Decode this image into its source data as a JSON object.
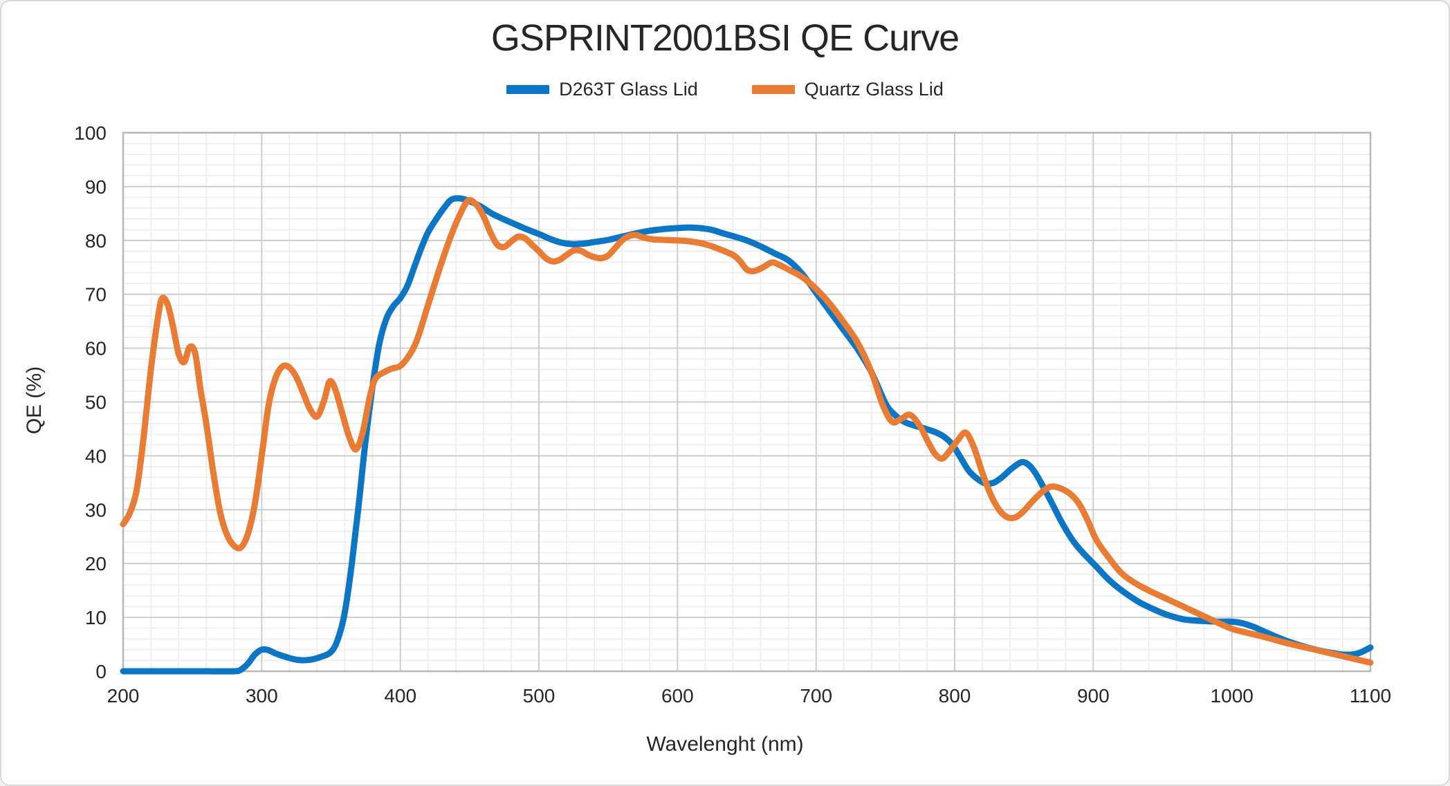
{
  "window": {
    "background": "#ffffff",
    "border_color": "#d9d9d9"
  },
  "title": "GSPRINT2001BSI QE Curve",
  "legend": {
    "items": [
      {
        "label": "D263T Glass Lid",
        "color": "#0d76c4"
      },
      {
        "label": "Quartz Glass Lid",
        "color": "#e87c35"
      }
    ]
  },
  "axes": {
    "x_title": "Wavelenght (nm)",
    "y_title": "QE (%)"
  },
  "chart_data": {
    "type": "line",
    "title": "GSPRINT2001BSI QE Curve",
    "xlabel": "Wavelenght (nm)",
    "ylabel": "QE (%)",
    "xlim": [
      200,
      1100
    ],
    "ylim": [
      0,
      100
    ],
    "x_ticks": [
      200,
      300,
      400,
      500,
      600,
      700,
      800,
      900,
      1000,
      1100
    ],
    "y_ticks": [
      0,
      10,
      20,
      30,
      40,
      50,
      60,
      70,
      80,
      90,
      100
    ],
    "grid": {
      "minor_x_step": 20,
      "minor_y_step": 2,
      "minor_color": "#ececec",
      "major_color": "#c9c9c9",
      "border_color": "#b7b7b7"
    },
    "tick_color": "#262626",
    "line_width": 9,
    "legend_position": "top-center",
    "series": [
      {
        "name": "D263T Glass Lid",
        "color": "#0d76c4",
        "x": [
          200,
          220,
          240,
          260,
          280,
          285,
          290,
          295,
          300,
          305,
          310,
          318,
          326,
          334,
          342,
          350,
          355,
          360,
          365,
          370,
          375,
          380,
          385,
          390,
          395,
          400,
          405,
          410,
          415,
          420,
          426,
          432,
          437,
          443,
          450,
          458,
          466,
          474,
          482,
          490,
          500,
          508,
          516,
          524,
          532,
          540,
          550,
          560,
          570,
          580,
          590,
          600,
          608,
          616,
          624,
          632,
          640,
          650,
          660,
          670,
          680,
          690,
          700,
          710,
          720,
          730,
          740,
          750,
          756,
          763,
          770,
          778,
          786,
          792,
          798,
          804,
          810,
          816,
          822,
          828,
          834,
          841,
          848,
          853,
          858,
          864,
          870,
          878,
          886,
          894,
          902,
          910,
          918,
          926,
          934,
          942,
          950,
          958,
          966,
          974,
          982,
          990,
          1000,
          1008,
          1016,
          1024,
          1032,
          1040,
          1048,
          1056,
          1064,
          1072,
          1080,
          1086,
          1092,
          1100
        ],
        "y": [
          0,
          0,
          0,
          0,
          0,
          0.3,
          1.4,
          3.1,
          4,
          3.9,
          3.3,
          2.6,
          2.1,
          2.1,
          2.6,
          3.6,
          6,
          11,
          20,
          31,
          43,
          53,
          61,
          65.5,
          67.8,
          69.3,
          71.5,
          75,
          78.5,
          81.5,
          84,
          86.2,
          87.6,
          87.8,
          87.3,
          86.3,
          85,
          84,
          83.1,
          82.2,
          81.2,
          80.3,
          79.6,
          79.3,
          79.4,
          79.7,
          80.1,
          80.7,
          81.3,
          81.8,
          82.1,
          82.3,
          82.4,
          82.3,
          82,
          81.4,
          80.8,
          80,
          78.9,
          77.6,
          76.3,
          73.8,
          70.3,
          66.8,
          63.3,
          59.8,
          55.5,
          49.8,
          47.8,
          46.4,
          45.7,
          45.1,
          44.4,
          43.6,
          42.2,
          39.8,
          37.3,
          35.8,
          34.9,
          35,
          36,
          37.6,
          38.8,
          38.4,
          36.9,
          34.2,
          31.3,
          27.3,
          24,
          21.6,
          19.5,
          17.3,
          15.5,
          14,
          12.7,
          11.7,
          10.8,
          10.1,
          9.6,
          9.4,
          9.3,
          9.2,
          9.2,
          8.9,
          8.2,
          7.3,
          6.4,
          5.6,
          4.9,
          4.3,
          3.8,
          3.4,
          3.1,
          3.1,
          3.4,
          4.4
        ]
      },
      {
        "name": "Quartz Glass Lid",
        "color": "#e87c35",
        "x": [
          200,
          205,
          210,
          215,
          220,
          225,
          228,
          232,
          236,
          240,
          244,
          248,
          252,
          256,
          260,
          265,
          270,
          275,
          280,
          285,
          290,
          295,
          300,
          305,
          310,
          315,
          320,
          325,
          330,
          335,
          340,
          345,
          349,
          353,
          358,
          363,
          368,
          373,
          378,
          382,
          388,
          394,
          400,
          406,
          412,
          420,
          428,
          436,
          443,
          449,
          455,
          460,
          465,
          470,
          475,
          480,
          485,
          490,
          495,
          500,
          505,
          510,
          515,
          520,
          525,
          530,
          535,
          540,
          545,
          550,
          555,
          560,
          565,
          570,
          576,
          582,
          590,
          600,
          610,
          620,
          630,
          640,
          645,
          650,
          655,
          661,
          668,
          674,
          680,
          690,
          700,
          710,
          720,
          730,
          740,
          748,
          755,
          762,
          768,
          775,
          781,
          786,
          791,
          796,
          802,
          808,
          814,
          820,
          826,
          832,
          838,
          844,
          850,
          857,
          864,
          870,
          877,
          884,
          890,
          896,
          902,
          910,
          920,
          930,
          940,
          950,
          960,
          970,
          980,
          990,
          1000,
          1010,
          1020,
          1030,
          1040,
          1050,
          1060,
          1070,
          1080,
          1090,
          1100
        ],
        "y": [
          27.3,
          29.5,
          34,
          44,
          56,
          65.5,
          69.2,
          68.2,
          64,
          59,
          57.4,
          60.2,
          59,
          52,
          46,
          37,
          29.5,
          25.3,
          23.3,
          23,
          25.5,
          31,
          40,
          49.5,
          54.5,
          56.6,
          56.4,
          54.6,
          51.6,
          48.6,
          47.3,
          50.3,
          53.8,
          52.4,
          48,
          43.6,
          41.2,
          44.5,
          51,
          54.3,
          55.5,
          56.2,
          56.7,
          58.5,
          61.5,
          68,
          74.5,
          80.5,
          84.8,
          87.4,
          86.6,
          84.5,
          81.5,
          79.2,
          78.8,
          79.8,
          80.7,
          80.4,
          79.2,
          78,
          76.7,
          76.1,
          76.4,
          77.3,
          78.1,
          78.1,
          77.4,
          76.9,
          76.7,
          77.2,
          78.6,
          80,
          80.8,
          81,
          80.5,
          80.2,
          80.1,
          80,
          79.8,
          79.3,
          78.4,
          77.3,
          76.2,
          74.6,
          74.3,
          74.9,
          75.9,
          75.4,
          74.6,
          73.2,
          71,
          68.2,
          64.8,
          61,
          55.5,
          49.5,
          46.3,
          47,
          47.6,
          45.5,
          42.5,
          40.3,
          39.5,
          40.8,
          42.8,
          44.3,
          41.5,
          36.8,
          32.8,
          30,
          28.6,
          28.6,
          29.8,
          31.8,
          33.5,
          34.3,
          33.9,
          32.8,
          31,
          28,
          24.5,
          21.5,
          18.3,
          16.4,
          15,
          13.8,
          12.6,
          11.4,
          10.2,
          9,
          7.9,
          7.2,
          6.6,
          5.9,
          5.2,
          4.6,
          4,
          3.4,
          2.8,
          2.2,
          1.6
        ]
      }
    ]
  }
}
